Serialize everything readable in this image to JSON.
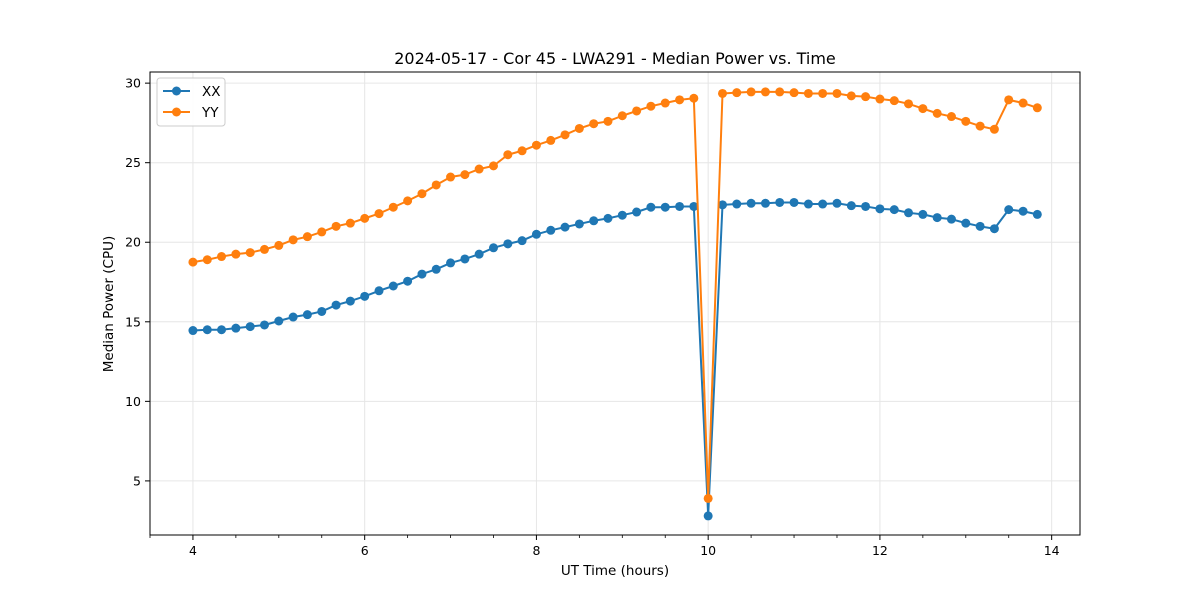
{
  "chart_data": {
    "type": "line",
    "title": "2024-05-17 - Cor 45 - LWA291 - Median Power vs. Time",
    "xlabel": "UT Time (hours)",
    "ylabel": "Median Power (CPU)",
    "xlim": [
      3.5,
      14.33
    ],
    "ylim": [
      1.6,
      30.7
    ],
    "x_ticks": [
      4,
      6,
      8,
      10,
      12,
      14
    ],
    "y_ticks": [
      5,
      10,
      15,
      20,
      25,
      30
    ],
    "grid": true,
    "legend_position": "upper-left",
    "x": [
      4.0,
      4.167,
      4.333,
      4.5,
      4.667,
      4.833,
      5.0,
      5.167,
      5.333,
      5.5,
      5.667,
      5.833,
      6.0,
      6.167,
      6.333,
      6.5,
      6.667,
      6.833,
      7.0,
      7.167,
      7.333,
      7.5,
      7.667,
      7.833,
      8.0,
      8.167,
      8.333,
      8.5,
      8.667,
      8.833,
      9.0,
      9.167,
      9.333,
      9.5,
      9.667,
      9.833,
      10.0,
      10.167,
      10.333,
      10.5,
      10.667,
      10.833,
      11.0,
      11.167,
      11.333,
      11.5,
      11.667,
      11.833,
      12.0,
      12.167,
      12.333,
      12.5,
      12.667,
      12.833,
      13.0,
      13.167,
      13.333,
      13.5,
      13.667,
      13.833
    ],
    "series": [
      {
        "name": "XX",
        "color": "#1f77b4",
        "values": [
          14.45,
          14.5,
          14.5,
          14.6,
          14.7,
          14.8,
          15.05,
          15.3,
          15.45,
          15.65,
          16.05,
          16.3,
          16.6,
          16.95,
          17.25,
          17.55,
          18.0,
          18.3,
          18.7,
          18.95,
          19.25,
          19.65,
          19.9,
          20.1,
          20.5,
          20.75,
          20.95,
          21.15,
          21.35,
          21.5,
          21.7,
          21.9,
          22.2,
          22.2,
          22.25,
          22.25,
          2.8,
          22.35,
          22.4,
          22.45,
          22.45,
          22.5,
          22.5,
          22.4,
          22.4,
          22.45,
          22.3,
          22.25,
          22.1,
          22.05,
          21.85,
          21.75,
          21.55,
          21.45,
          21.2,
          21.0,
          20.85,
          22.05,
          21.95,
          21.75
        ]
      },
      {
        "name": "YY",
        "color": "#ff7f0e",
        "values": [
          18.75,
          18.9,
          19.1,
          19.25,
          19.35,
          19.55,
          19.8,
          20.15,
          20.35,
          20.65,
          21.0,
          21.2,
          21.5,
          21.8,
          22.2,
          22.6,
          23.05,
          23.6,
          24.1,
          24.25,
          24.6,
          24.8,
          25.5,
          25.75,
          26.1,
          26.4,
          26.75,
          27.15,
          27.45,
          27.6,
          27.95,
          28.25,
          28.55,
          28.75,
          28.95,
          29.05,
          3.9,
          29.35,
          29.4,
          29.45,
          29.45,
          29.45,
          29.4,
          29.35,
          29.35,
          29.35,
          29.2,
          29.15,
          29.0,
          28.9,
          28.7,
          28.4,
          28.1,
          27.9,
          27.6,
          27.3,
          27.1,
          28.95,
          28.75,
          28.45
        ]
      }
    ]
  }
}
